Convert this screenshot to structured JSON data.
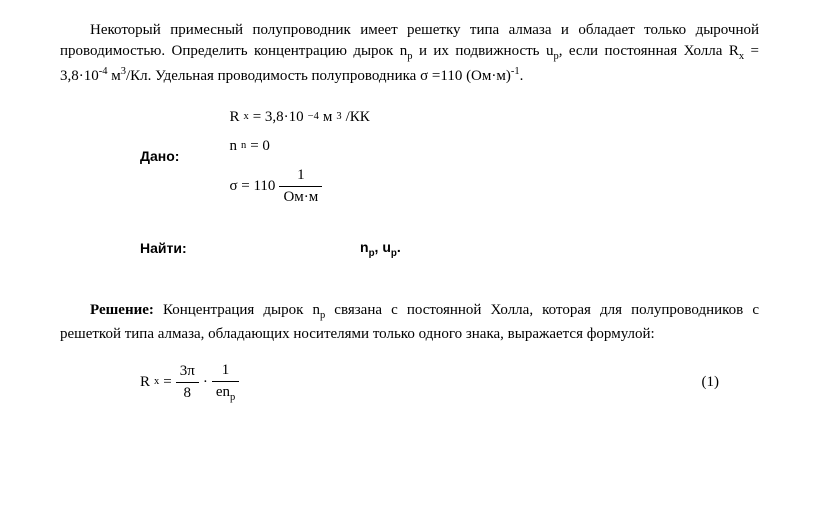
{
  "problem": {
    "text": "Некоторый примесный полупроводник имеет решетку типа алмаза и обладает только дырочной проводимостью. Определить концентрацию дырок n",
    "text2": " и их подвижность u",
    "text3": ", если постоянная Холла R",
    "text4": " = 3,8·10",
    "text5": " м",
    "text6": "/Кл. Удельная проводимость полупроводника σ =110 (Ом·м)",
    "text7": ".",
    "sub_p": "p",
    "sub_x": "x",
    "sup_minus4": "-4",
    "sup_3": "3",
    "sup_minus1": "-1"
  },
  "given": {
    "label": "Дано:",
    "line1_a": "R",
    "line1_sub": "x",
    "line1_b": " = 3,8·10",
    "line1_sup": "−4",
    "line1_c": " м",
    "line1_sup2": "3",
    "line1_d": "/КК",
    "line2_a": "n",
    "line2_sub": "n",
    "line2_b": " = 0",
    "line3_a": "σ = 110 ",
    "line3_num": "1",
    "line3_den": "Ом·м"
  },
  "find": {
    "label": "Найти:",
    "values_a": "n",
    "values_b": ", u",
    "values_c": ".",
    "sub_p": "p"
  },
  "solution": {
    "label": "Решение:",
    "text1": " Концентрация дырок n",
    "text2": " связана с постоянной Холла, которая для полупроводников с решеткой типа алмаза, обладающих носителями только одного знака, выражается формулой:",
    "sub_p": "p"
  },
  "formula": {
    "lhs_a": "R",
    "lhs_sub": "x",
    "eq": " = ",
    "frac1_num": "3π",
    "frac1_den": "8",
    "mid": " · ",
    "frac2_num": "1",
    "frac2_den_a": "en",
    "frac2_den_sub": "p",
    "eqnum": "(1)"
  }
}
